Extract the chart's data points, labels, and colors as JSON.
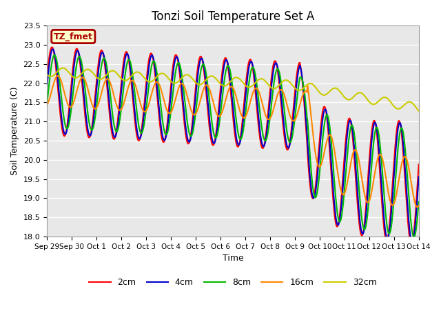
{
  "title": "Tonzi Soil Temperature Set A",
  "xlabel": "Time",
  "ylabel": "Soil Temperature (C)",
  "ylim": [
    18.0,
    23.5
  ],
  "yticks": [
    18.0,
    18.5,
    19.0,
    19.5,
    20.0,
    20.5,
    21.0,
    21.5,
    22.0,
    22.5,
    23.0,
    23.5
  ],
  "xtick_labels": [
    "Sep 29",
    "Sep 30",
    "Oct 1",
    "Oct 2",
    "Oct 3",
    "Oct 4",
    "Oct 5",
    "Oct 6",
    "Oct 7",
    "Oct 8",
    "Oct 9",
    "Oct 10",
    "Oct 11",
    "Oct 12",
    "Oct 13",
    "Oct 14"
  ],
  "colors": {
    "2cm": "#ff0000",
    "4cm": "#0000cc",
    "8cm": "#00bb00",
    "16cm": "#ff8800",
    "32cm": "#cccc00"
  },
  "line_width": 1.5,
  "legend_labels": [
    "2cm",
    "4cm",
    "8cm",
    "16cm",
    "32cm"
  ],
  "annotation_text": "TZ_fmet",
  "annotation_color": "#aa0000",
  "annotation_bg": "#ffffcc",
  "plot_bg": "#e8e8e8",
  "n_points": 720,
  "title_fontsize": 12
}
